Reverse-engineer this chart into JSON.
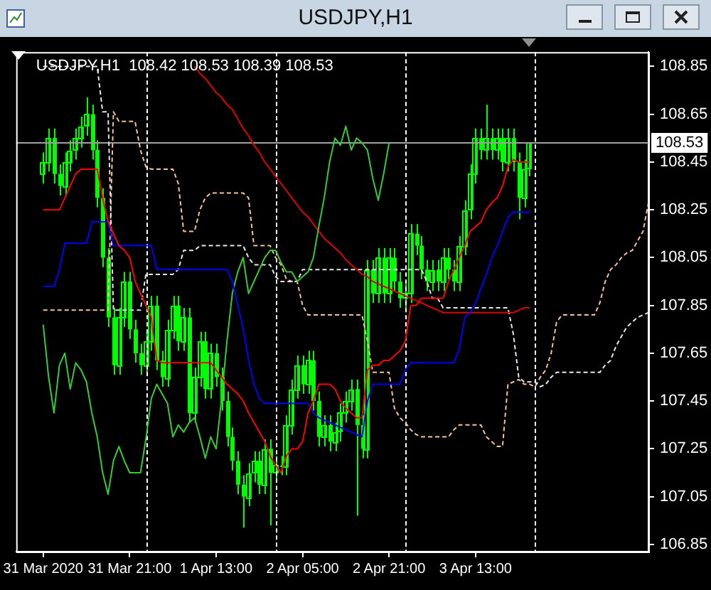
{
  "chart_data": {
    "type": "candlestick",
    "title": "USDJPY,H1",
    "annotations": [
      "USDJPY,H1  108.42 108.53 108.39 108.53"
    ],
    "color": "#00ff00",
    "marker": "none",
    "grid": false,
    "legend": false,
    "xlim": [
      "2020-03-31T00:00",
      "2020-04-04T21:00"
    ],
    "xticks": [
      {
        "value": "2020-03-31T05:00",
        "label": "31 Mar 2020"
      },
      {
        "value": "2020-03-31T21:00",
        "label": "31 Mar 21:00"
      },
      {
        "value": "2020-04-01T13:00",
        "label": "1 Apr 13:00"
      },
      {
        "value": "2020-04-02T05:00",
        "label": "2 Apr 05:00"
      },
      {
        "value": "2020-04-02T21:00",
        "label": "2 Apr 21:00"
      },
      {
        "value": "2020-04-03T13:00",
        "label": "3 Apr 13:00"
      }
    ],
    "ylim": [
      106.82,
      108.91
    ],
    "yticks": [
      106.85,
      107.05,
      107.25,
      107.45,
      107.65,
      107.85,
      108.05,
      108.25,
      108.45,
      108.65,
      108.85
    ],
    "ref_lines": [
      {
        "axis": "y",
        "value": 108.53,
        "label": "108.53",
        "color": "#a0a0a0",
        "line_style": "solid"
      },
      {
        "axis": "x",
        "value": "2020-04-01T00:00",
        "color": "#ffffff",
        "line_style": "dashed"
      },
      {
        "axis": "x",
        "value": "2020-04-02T00:00",
        "color": "#ffffff",
        "line_style": "dashed"
      },
      {
        "axis": "x",
        "value": "2020-04-03T00:00",
        "color": "#ffffff",
        "line_style": "dashed"
      },
      {
        "axis": "x",
        "value": "2020-04-04T00:00",
        "color": "#ffffff",
        "line_style": "dashed"
      }
    ],
    "x": [
      "2020-03-31T05:00",
      "2020-03-31T06:00",
      "2020-03-31T07:00",
      "2020-03-31T08:00",
      "2020-03-31T09:00",
      "2020-03-31T10:00",
      "2020-03-31T11:00",
      "2020-03-31T12:00",
      "2020-03-31T13:00",
      "2020-03-31T14:00",
      "2020-03-31T15:00",
      "2020-03-31T16:00",
      "2020-03-31T17:00",
      "2020-03-31T18:00",
      "2020-03-31T19:00",
      "2020-03-31T20:00",
      "2020-03-31T21:00",
      "2020-03-31T22:00",
      "2020-03-31T23:00",
      "2020-04-01T00:00",
      "2020-04-01T01:00",
      "2020-04-01T02:00",
      "2020-04-01T03:00",
      "2020-04-01T04:00",
      "2020-04-01T05:00",
      "2020-04-01T06:00",
      "2020-04-01T07:00",
      "2020-04-01T08:00",
      "2020-04-01T09:00",
      "2020-04-01T10:00",
      "2020-04-01T11:00",
      "2020-04-01T12:00",
      "2020-04-01T13:00",
      "2020-04-01T14:00",
      "2020-04-01T15:00",
      "2020-04-01T16:00",
      "2020-04-01T17:00",
      "2020-04-01T18:00",
      "2020-04-01T19:00",
      "2020-04-01T20:00",
      "2020-04-01T21:00",
      "2020-04-01T22:00",
      "2020-04-01T23:00",
      "2020-04-02T00:00",
      "2020-04-02T01:00",
      "2020-04-02T02:00",
      "2020-04-02T03:00",
      "2020-04-02T04:00",
      "2020-04-02T05:00",
      "2020-04-02T06:00",
      "2020-04-02T07:00",
      "2020-04-02T08:00",
      "2020-04-02T09:00",
      "2020-04-02T10:00",
      "2020-04-02T11:00",
      "2020-04-02T12:00",
      "2020-04-02T13:00",
      "2020-04-02T14:00",
      "2020-04-02T15:00",
      "2020-04-02T16:00",
      "2020-04-02T17:00",
      "2020-04-02T18:00",
      "2020-04-02T19:00",
      "2020-04-02T20:00",
      "2020-04-02T21:00",
      "2020-04-02T22:00",
      "2020-04-02T23:00",
      "2020-04-03T00:00",
      "2020-04-03T01:00",
      "2020-04-03T02:00",
      "2020-04-03T03:00",
      "2020-04-03T04:00",
      "2020-04-03T05:00",
      "2020-04-03T06:00",
      "2020-04-03T07:00",
      "2020-04-03T08:00",
      "2020-04-03T09:00",
      "2020-04-03T10:00",
      "2020-04-03T11:00",
      "2020-04-03T12:00",
      "2020-04-03T13:00",
      "2020-04-03T14:00",
      "2020-04-03T15:00",
      "2020-04-03T16:00",
      "2020-04-03T17:00",
      "2020-04-03T18:00",
      "2020-04-03T19:00",
      "2020-04-03T20:00",
      "2020-04-03T21:00",
      "2020-04-03T22:00",
      "2020-04-03T23:00"
    ],
    "ohlc": [
      [
        108.4,
        108.49,
        108.36,
        108.45
      ],
      [
        108.45,
        108.59,
        108.41,
        108.55
      ],
      [
        108.55,
        108.59,
        108.36,
        108.4
      ],
      [
        108.4,
        108.44,
        108.31,
        108.35
      ],
      [
        108.35,
        108.49,
        108.31,
        108.45
      ],
      [
        108.45,
        108.54,
        108.41,
        108.5
      ],
      [
        108.5,
        108.59,
        108.46,
        108.55
      ],
      [
        108.55,
        108.64,
        108.51,
        108.6
      ],
      [
        108.6,
        108.72,
        108.56,
        108.65
      ],
      [
        108.65,
        108.69,
        108.46,
        108.5
      ],
      [
        108.5,
        108.54,
        108.26,
        108.3
      ],
      [
        108.3,
        108.34,
        108.01,
        108.05
      ],
      [
        108.05,
        108.09,
        107.76,
        107.8
      ],
      [
        107.8,
        107.84,
        107.56,
        107.6
      ],
      [
        107.6,
        107.84,
        107.56,
        107.8
      ],
      [
        107.8,
        107.99,
        107.76,
        107.95
      ],
      [
        107.95,
        107.99,
        107.71,
        107.75
      ],
      [
        107.75,
        107.79,
        107.61,
        107.65
      ],
      [
        107.65,
        107.69,
        107.56,
        107.6
      ],
      [
        107.6,
        107.74,
        107.56,
        107.7
      ],
      [
        107.7,
        107.89,
        107.66,
        107.85
      ],
      [
        107.85,
        107.89,
        107.58,
        107.62
      ],
      [
        107.62,
        107.66,
        107.51,
        107.55
      ],
      [
        107.55,
        107.79,
        107.51,
        107.75
      ],
      [
        107.75,
        107.89,
        107.71,
        107.85
      ],
      [
        107.85,
        107.89,
        107.66,
        107.7
      ],
      [
        107.7,
        107.84,
        107.66,
        107.8
      ],
      [
        107.8,
        107.84,
        107.36,
        107.4
      ],
      [
        107.4,
        107.59,
        107.36,
        107.55
      ],
      [
        107.55,
        107.74,
        107.51,
        107.7
      ],
      [
        107.7,
        107.74,
        107.46,
        107.5
      ],
      [
        107.5,
        107.69,
        107.46,
        107.65
      ],
      [
        107.65,
        107.69,
        107.51,
        107.55
      ],
      [
        107.55,
        107.59,
        107.41,
        107.45
      ],
      [
        107.45,
        107.49,
        107.26,
        107.3
      ],
      [
        107.3,
        107.34,
        107.16,
        107.2
      ],
      [
        107.2,
        107.24,
        107.06,
        107.1
      ],
      [
        107.1,
        107.14,
        106.92,
        107.05
      ],
      [
        107.05,
        107.19,
        107.01,
        107.15
      ],
      [
        107.15,
        107.24,
        107.11,
        107.2
      ],
      [
        107.2,
        107.24,
        107.06,
        107.1
      ],
      [
        107.1,
        107.29,
        107.06,
        107.25
      ],
      [
        107.25,
        107.29,
        106.93,
        107.15
      ],
      [
        107.15,
        107.22,
        107.11,
        107.18
      ],
      [
        107.18,
        107.22,
        107.14,
        107.18
      ],
      [
        107.18,
        107.39,
        107.14,
        107.35
      ],
      [
        107.35,
        107.54,
        107.31,
        107.5
      ],
      [
        107.5,
        107.64,
        107.46,
        107.6
      ],
      [
        107.6,
        107.64,
        107.48,
        107.52
      ],
      [
        107.52,
        107.66,
        107.48,
        107.62
      ],
      [
        107.62,
        107.66,
        107.41,
        107.45
      ],
      [
        107.45,
        107.49,
        107.26,
        107.3
      ],
      [
        107.3,
        107.39,
        107.26,
        107.35
      ],
      [
        107.35,
        107.39,
        107.24,
        107.28
      ],
      [
        107.28,
        107.36,
        107.24,
        107.32
      ],
      [
        107.32,
        107.44,
        107.28,
        107.4
      ],
      [
        107.4,
        107.49,
        107.36,
        107.45
      ],
      [
        107.45,
        107.54,
        107.41,
        107.5
      ],
      [
        107.5,
        107.54,
        106.97,
        107.35
      ],
      [
        107.35,
        107.39,
        107.21,
        107.25
      ],
      [
        107.25,
        108.04,
        107.21,
        108.0
      ],
      [
        108.0,
        108.04,
        107.86,
        107.9
      ],
      [
        107.9,
        108.09,
        107.86,
        108.05
      ],
      [
        108.05,
        108.09,
        107.86,
        107.9
      ],
      [
        107.9,
        108.09,
        107.86,
        108.05
      ],
      [
        108.05,
        108.09,
        107.91,
        107.95
      ],
      [
        107.95,
        107.99,
        107.84,
        107.88
      ],
      [
        107.88,
        107.94,
        107.84,
        107.9
      ],
      [
        107.9,
        108.19,
        107.86,
        108.15
      ],
      [
        108.15,
        108.19,
        108.06,
        108.1
      ],
      [
        108.1,
        108.14,
        107.96,
        108.0
      ],
      [
        108.0,
        108.04,
        107.91,
        107.95
      ],
      [
        107.95,
        108.04,
        107.91,
        108.0
      ],
      [
        108.0,
        108.04,
        107.91,
        107.95
      ],
      [
        107.95,
        108.09,
        107.91,
        108.05
      ],
      [
        108.05,
        108.09,
        107.96,
        108.0
      ],
      [
        108.0,
        108.04,
        107.91,
        107.95
      ],
      [
        107.95,
        108.14,
        107.91,
        108.1
      ],
      [
        108.1,
        108.29,
        108.06,
        108.25
      ],
      [
        108.25,
        108.44,
        108.21,
        108.4
      ],
      [
        108.4,
        108.59,
        108.36,
        108.55
      ],
      [
        108.55,
        108.59,
        108.46,
        108.5
      ],
      [
        108.5,
        108.69,
        108.46,
        108.55
      ],
      [
        108.55,
        108.59,
        108.46,
        108.5
      ],
      [
        108.5,
        108.59,
        108.46,
        108.55
      ],
      [
        108.55,
        108.59,
        108.41,
        108.45
      ],
      [
        108.45,
        108.59,
        108.41,
        108.55
      ],
      [
        108.55,
        108.59,
        108.41,
        108.45
      ],
      [
        108.45,
        108.49,
        108.21,
        108.3
      ],
      [
        108.3,
        108.46,
        108.26,
        108.42
      ],
      [
        108.42,
        108.53,
        108.39,
        108.53
      ]
    ],
    "series": [
      {
        "type": "line",
        "color": "#f4c09c",
        "line_style": "dashed",
        "x": [
          "2020-03-31T05:00",
          "2020-03-31T06:00",
          "2020-03-31T07:00",
          "2020-03-31T08:00",
          "2020-03-31T09:00",
          "2020-03-31T10:00",
          "2020-03-31T11:00",
          "2020-03-31T12:00",
          "2020-03-31T13:00",
          "2020-03-31T14:00",
          "2020-03-31T15:00",
          "2020-03-31T16:00",
          "2020-03-31T17:00",
          "2020-03-31T18:00",
          "2020-03-31T19:00",
          "2020-03-31T20:00",
          "2020-03-31T21:00",
          "2020-03-31T22:00",
          "2020-03-31T23:00",
          "2020-04-01T00:00",
          "2020-04-01T01:00",
          "2020-04-01T02:00",
          "2020-04-01T03:00",
          "2020-04-01T04:00",
          "2020-04-01T05:00",
          "2020-04-01T06:00",
          "2020-04-01T07:00",
          "2020-04-01T08:00",
          "2020-04-01T09:00",
          "2020-04-01T10:00",
          "2020-04-01T11:00",
          "2020-04-01T12:00",
          "2020-04-01T13:00",
          "2020-04-01T14:00",
          "2020-04-01T15:00",
          "2020-04-01T16:00",
          "2020-04-01T17:00",
          "2020-04-01T18:00",
          "2020-04-01T19:00",
          "2020-04-01T20:00",
          "2020-04-01T21:00",
          "2020-04-01T22:00",
          "2020-04-01T23:00",
          "2020-04-02T00:00",
          "2020-04-02T01:00",
          "2020-04-02T02:00",
          "2020-04-02T03:00",
          "2020-04-02T04:00",
          "2020-04-02T05:00",
          "2020-04-02T06:00",
          "2020-04-02T07:00",
          "2020-04-02T08:00",
          "2020-04-02T09:00",
          "2020-04-02T10:00",
          "2020-04-02T11:00",
          "2020-04-02T12:00",
          "2020-04-02T13:00",
          "2020-04-02T14:00",
          "2020-04-02T15:00",
          "2020-04-02T16:00",
          "2020-04-02T17:00",
          "2020-04-02T18:00",
          "2020-04-02T19:00",
          "2020-04-02T20:00",
          "2020-04-02T21:00",
          "2020-04-02T22:00",
          "2020-04-02T23:00",
          "2020-04-03T00:00",
          "2020-04-03T01:00",
          "2020-04-03T02:00",
          "2020-04-03T03:00",
          "2020-04-03T04:00",
          "2020-04-03T05:00",
          "2020-04-03T06:00",
          "2020-04-03T07:00",
          "2020-04-03T08:00",
          "2020-04-03T09:00",
          "2020-04-03T10:00",
          "2020-04-03T11:00",
          "2020-04-03T12:00",
          "2020-04-03T13:00",
          "2020-04-03T14:00",
          "2020-04-03T15:00",
          "2020-04-03T16:00",
          "2020-04-03T17:00",
          "2020-04-03T18:00",
          "2020-04-03T19:00",
          "2020-04-03T20:00",
          "2020-04-03T21:00",
          "2020-04-03T22:00",
          "2020-04-03T23:00",
          "2020-04-04T00:00",
          "2020-04-04T01:00",
          "2020-04-04T02:00",
          "2020-04-04T03:00",
          "2020-04-04T04:00",
          "2020-04-04T05:00",
          "2020-04-04T06:00",
          "2020-04-04T07:00",
          "2020-04-04T08:00",
          "2020-04-04T09:00",
          "2020-04-04T10:00",
          "2020-04-04T11:00",
          "2020-04-04T12:00",
          "2020-04-04T13:00",
          "2020-04-04T14:00",
          "2020-04-04T15:00",
          "2020-04-04T16:00",
          "2020-04-04T17:00",
          "2020-04-04T18:00",
          "2020-04-04T19:00",
          "2020-04-04T20:00",
          "2020-04-04T21:00"
        ],
        "values": [
          107.83,
          107.83,
          107.83,
          107.83,
          107.83,
          107.83,
          107.83,
          107.83,
          107.83,
          107.83,
          107.83,
          107.83,
          107.83,
          108.66,
          108.62,
          108.62,
          108.62,
          108.62,
          108.5,
          108.43,
          108.42,
          108.42,
          108.42,
          108.42,
          108.42,
          108.36,
          108.16,
          108.16,
          108.16,
          108.25,
          108.3,
          108.32,
          108.32,
          108.32,
          108.32,
          108.32,
          108.32,
          108.32,
          108.3,
          108.1,
          108.1,
          108.1,
          108.1,
          108.05,
          108.02,
          107.96,
          107.95,
          107.95,
          107.85,
          107.81,
          107.81,
          107.81,
          107.81,
          107.81,
          107.81,
          107.81,
          107.81,
          107.81,
          107.81,
          107.81,
          107.7,
          107.57,
          107.57,
          107.57,
          107.57,
          107.42,
          107.38,
          107.36,
          107.33,
          107.31,
          107.3,
          107.3,
          107.3,
          107.3,
          107.3,
          107.3,
          107.33,
          107.35,
          107.35,
          107.35,
          107.35,
          107.35,
          107.3,
          107.28,
          107.26,
          107.26,
          107.52,
          107.53,
          107.54,
          107.52,
          107.52,
          107.51,
          107.55,
          107.58,
          107.65,
          107.78,
          107.81,
          107.81,
          107.81,
          107.81,
          107.81,
          107.81,
          107.81,
          107.86,
          107.95,
          108.0,
          108.02,
          108.05,
          108.07,
          108.08,
          108.12,
          108.16,
          108.28
        ]
      },
      {
        "type": "line",
        "color": "#e8e4ec",
        "line_style": "dashed",
        "x": [
          "2020-03-31T05:00",
          "2020-03-31T06:00",
          "2020-03-31T07:00",
          "2020-03-31T08:00",
          "2020-03-31T09:00",
          "2020-03-31T10:00",
          "2020-03-31T11:00",
          "2020-03-31T12:00",
          "2020-03-31T13:00",
          "2020-03-31T14:00",
          "2020-03-31T15:00",
          "2020-03-31T16:00",
          "2020-03-31T17:00",
          "2020-03-31T18:00",
          "2020-03-31T19:00",
          "2020-03-31T20:00",
          "2020-03-31T21:00",
          "2020-03-31T22:00",
          "2020-03-31T23:00",
          "2020-04-01T00:00",
          "2020-04-01T01:00",
          "2020-04-01T02:00",
          "2020-04-01T03:00",
          "2020-04-01T04:00",
          "2020-04-01T05:00",
          "2020-04-01T06:00",
          "2020-04-01T07:00",
          "2020-04-01T08:00",
          "2020-04-01T09:00",
          "2020-04-01T10:00",
          "2020-04-01T11:00",
          "2020-04-01T12:00",
          "2020-04-01T13:00",
          "2020-04-01T14:00",
          "2020-04-01T15:00",
          "2020-04-01T16:00",
          "2020-04-01T17:00",
          "2020-04-01T18:00",
          "2020-04-01T19:00",
          "2020-04-01T20:00",
          "2020-04-01T21:00",
          "2020-04-01T22:00",
          "2020-04-01T23:00",
          "2020-04-02T00:00",
          "2020-04-02T01:00",
          "2020-04-02T02:00",
          "2020-04-02T03:00",
          "2020-04-02T04:00",
          "2020-04-02T05:00",
          "2020-04-02T06:00",
          "2020-04-02T07:00",
          "2020-04-02T08:00",
          "2020-04-02T09:00",
          "2020-04-02T10:00",
          "2020-04-02T11:00",
          "2020-04-02T12:00",
          "2020-04-02T13:00",
          "2020-04-02T14:00",
          "2020-04-02T15:00",
          "2020-04-02T16:00",
          "2020-04-02T17:00",
          "2020-04-02T18:00",
          "2020-04-02T19:00",
          "2020-04-02T20:00",
          "2020-04-02T21:00",
          "2020-04-02T22:00",
          "2020-04-02T23:00",
          "2020-04-03T00:00",
          "2020-04-03T01:00",
          "2020-04-03T02:00",
          "2020-04-03T03:00",
          "2020-04-03T04:00",
          "2020-04-03T05:00",
          "2020-04-03T06:00",
          "2020-04-03T07:00",
          "2020-04-03T08:00",
          "2020-04-03T09:00",
          "2020-04-03T10:00",
          "2020-04-03T11:00",
          "2020-04-03T12:00",
          "2020-04-03T13:00",
          "2020-04-03T14:00",
          "2020-04-03T15:00",
          "2020-04-03T16:00",
          "2020-04-03T17:00",
          "2020-04-03T18:00",
          "2020-04-03T19:00",
          "2020-04-03T20:00",
          "2020-04-03T21:00",
          "2020-04-03T22:00",
          "2020-04-03T23:00",
          "2020-04-04T00:00",
          "2020-04-04T01:00",
          "2020-04-04T02:00",
          "2020-04-04T03:00",
          "2020-04-04T04:00",
          "2020-04-04T05:00",
          "2020-04-04T06:00",
          "2020-04-04T07:00",
          "2020-04-04T08:00",
          "2020-04-04T09:00",
          "2020-04-04T10:00",
          "2020-04-04T11:00",
          "2020-04-04T12:00",
          "2020-04-04T13:00",
          "2020-04-04T14:00",
          "2020-04-04T15:00",
          "2020-04-04T16:00",
          "2020-04-04T17:00",
          "2020-04-04T18:00",
          "2020-04-04T19:00",
          "2020-04-04T20:00",
          "2020-04-04T21:00"
        ],
        "values": [
          108.85,
          108.85,
          108.85,
          108.85,
          108.85,
          108.85,
          108.85,
          108.85,
          108.85,
          108.85,
          108.85,
          108.66,
          108.66,
          107.83,
          107.83,
          107.83,
          107.83,
          107.83,
          107.83,
          107.98,
          107.98,
          107.98,
          107.98,
          107.98,
          107.98,
          108.0,
          108.08,
          108.08,
          108.08,
          108.1,
          108.1,
          108.1,
          108.1,
          108.1,
          108.1,
          108.1,
          108.1,
          108.1,
          108.05,
          108.02,
          108.02,
          108.02,
          108.02,
          107.97,
          107.95,
          107.95,
          107.95,
          107.95,
          108.0,
          108.0,
          108.0,
          108.0,
          108.0,
          108.0,
          108.0,
          108.0,
          108.0,
          108.0,
          108.0,
          108.0,
          108.0,
          108.0,
          108.0,
          108.0,
          108.0,
          108.0,
          108.0,
          108.0,
          108.0,
          108.0,
          108.0,
          107.95,
          107.88,
          107.88,
          107.84,
          107.84,
          107.84,
          107.84,
          107.84,
          107.84,
          107.84,
          107.84,
          107.84,
          107.84,
          107.84,
          107.84,
          107.84,
          107.73,
          107.55,
          107.53,
          107.53,
          107.53,
          107.51,
          107.52,
          107.55,
          107.57,
          107.57,
          107.57,
          107.57,
          107.57,
          107.57,
          107.57,
          107.57,
          107.57,
          107.6,
          107.62,
          107.68,
          107.72,
          107.76,
          107.78,
          107.8,
          107.81,
          107.82
        ]
      },
      {
        "type": "line",
        "color": "#e00000",
        "values": [
          null,
          null,
          null,
          null,
          null,
          null,
          null,
          null,
          null,
          null,
          null,
          null,
          null,
          null,
          null,
          null,
          null,
          null,
          null,
          null,
          null,
          null,
          null,
          null,
          null,
          null,
          null,
          null,
          108.85,
          108.82,
          108.8,
          108.77,
          108.74,
          108.72,
          108.69,
          108.67,
          108.63,
          108.59,
          108.56,
          108.52,
          108.49,
          108.45,
          108.42,
          108.39,
          108.36,
          108.33,
          108.3,
          108.27,
          108.24,
          108.22,
          108.19,
          108.16,
          108.13,
          108.11,
          108.09,
          108.07,
          108.04,
          108.02,
          108.0,
          107.98,
          107.97,
          107.95,
          107.94,
          107.93,
          107.92,
          107.91,
          107.9,
          107.89,
          107.88,
          107.87,
          107.86,
          107.85,
          107.84,
          107.83,
          107.82,
          107.82,
          107.82,
          107.82,
          107.82,
          107.82,
          107.82,
          107.82,
          107.82,
          107.82,
          107.82,
          107.82,
          107.82,
          107.82,
          107.83,
          107.84,
          107.84
        ]
      },
      {
        "type": "line",
        "color": "#32cd32",
        "x": [
          "2020-03-31T05:00",
          "2020-03-31T06:00",
          "2020-03-31T07:00",
          "2020-03-31T08:00",
          "2020-03-31T09:00",
          "2020-03-31T10:00",
          "2020-03-31T11:00",
          "2020-03-31T12:00",
          "2020-03-31T13:00",
          "2020-03-31T14:00",
          "2020-03-31T15:00",
          "2020-03-31T16:00",
          "2020-03-31T17:00",
          "2020-03-31T18:00",
          "2020-03-31T19:00",
          "2020-03-31T20:00",
          "2020-03-31T21:00",
          "2020-03-31T22:00",
          "2020-03-31T23:00",
          "2020-04-01T00:00",
          "2020-04-01T01:00",
          "2020-04-01T02:00",
          "2020-04-01T03:00",
          "2020-04-01T04:00",
          "2020-04-01T05:00",
          "2020-04-01T06:00",
          "2020-04-01T07:00",
          "2020-04-01T08:00",
          "2020-04-01T09:00",
          "2020-04-01T10:00",
          "2020-04-01T11:00",
          "2020-04-01T12:00",
          "2020-04-01T13:00",
          "2020-04-01T14:00",
          "2020-04-01T15:00",
          "2020-04-01T16:00",
          "2020-04-01T17:00",
          "2020-04-01T18:00",
          "2020-04-01T19:00",
          "2020-04-01T20:00",
          "2020-04-01T21:00",
          "2020-04-01T22:00",
          "2020-04-01T23:00",
          "2020-04-02T00:00",
          "2020-04-02T01:00",
          "2020-04-02T02:00",
          "2020-04-02T03:00",
          "2020-04-02T04:00",
          "2020-04-02T05:00",
          "2020-04-02T06:00",
          "2020-04-02T07:00",
          "2020-04-02T08:00",
          "2020-04-02T09:00",
          "2020-04-02T10:00",
          "2020-04-02T11:00",
          "2020-04-02T12:00",
          "2020-04-02T13:00",
          "2020-04-02T14:00",
          "2020-04-02T15:00",
          "2020-04-02T16:00",
          "2020-04-02T17:00",
          "2020-04-02T18:00",
          "2020-04-02T19:00",
          "2020-04-02T20:00",
          "2020-04-02T21:00"
        ],
        "values": [
          107.77,
          107.55,
          107.4,
          107.6,
          107.65,
          107.5,
          107.61,
          107.58,
          107.53,
          107.4,
          107.3,
          107.15,
          107.06,
          107.2,
          107.26,
          107.2,
          107.15,
          107.15,
          107.15,
          107.29,
          107.46,
          107.52,
          107.48,
          107.44,
          107.3,
          107.35,
          107.32,
          107.36,
          107.38,
          107.3,
          107.21,
          107.3,
          107.25,
          107.46,
          107.7,
          107.9,
          107.99,
          108.05,
          107.9,
          107.95,
          108.0,
          108.05,
          108.08,
          108.08,
          108.03,
          107.99,
          107.99,
          107.95,
          107.97,
          107.99,
          108.05,
          108.18,
          108.3,
          108.45,
          108.55,
          108.52,
          108.6,
          108.5,
          108.55,
          108.53,
          108.5,
          108.38,
          108.29,
          108.4,
          108.53
        ]
      },
      {
        "type": "line",
        "color": "#0000ff",
        "values": [
          107.93,
          107.93,
          107.93,
          108.0,
          108.11,
          108.11,
          108.11,
          108.11,
          108.11,
          108.2,
          108.2,
          108.2,
          108.2,
          108.1,
          108.1,
          108.1,
          108.1,
          108.1,
          108.1,
          108.1,
          108.1,
          108.0,
          108.0,
          108.0,
          108.0,
          108.0,
          108.0,
          108.0,
          108.0,
          108.0,
          108.0,
          108.0,
          108.0,
          108.0,
          108.0,
          107.95,
          107.85,
          107.75,
          107.62,
          107.52,
          107.46,
          107.44,
          107.44,
          107.44,
          107.44,
          107.44,
          107.44,
          107.44,
          107.44,
          107.44,
          107.4,
          107.38,
          107.37,
          107.36,
          107.35,
          107.34,
          107.33,
          107.32,
          107.31,
          107.3,
          107.45,
          107.52,
          107.52,
          107.52,
          107.52,
          107.52,
          107.52,
          107.58,
          107.61,
          107.61,
          107.61,
          107.61,
          107.61,
          107.61,
          107.61,
          107.61,
          107.61,
          107.67,
          107.8,
          107.82,
          107.86,
          107.92,
          107.98,
          108.05,
          108.1,
          108.16,
          108.22,
          108.24,
          108.24,
          108.24,
          108.24
        ]
      },
      {
        "type": "line",
        "color": "#ff0000",
        "values": [
          108.25,
          108.25,
          108.25,
          108.25,
          108.3,
          108.35,
          108.4,
          108.42,
          108.42,
          108.42,
          108.42,
          108.3,
          108.2,
          108.15,
          108.1,
          108.08,
          108.05,
          107.95,
          107.9,
          107.85,
          107.8,
          107.62,
          107.61,
          107.61,
          107.61,
          107.61,
          107.61,
          107.61,
          107.61,
          107.61,
          107.61,
          107.61,
          107.58,
          107.55,
          107.52,
          107.5,
          107.48,
          107.45,
          107.4,
          107.36,
          107.32,
          107.28,
          107.22,
          107.18,
          107.15,
          107.22,
          107.25,
          107.25,
          107.28,
          107.4,
          107.45,
          107.52,
          107.52,
          107.52,
          107.5,
          107.45,
          107.42,
          107.4,
          107.38,
          107.38,
          107.58,
          107.6,
          107.6,
          107.62,
          107.62,
          107.64,
          107.66,
          107.7,
          107.85,
          107.85,
          107.88,
          107.88,
          107.88,
          107.88,
          107.88,
          107.95,
          108.0,
          108.05,
          108.1,
          108.16,
          108.18,
          108.2,
          108.25,
          108.28,
          108.3,
          108.35,
          108.43,
          108.46,
          108.45,
          108.45,
          108.45
        ]
      }
    ]
  }
}
